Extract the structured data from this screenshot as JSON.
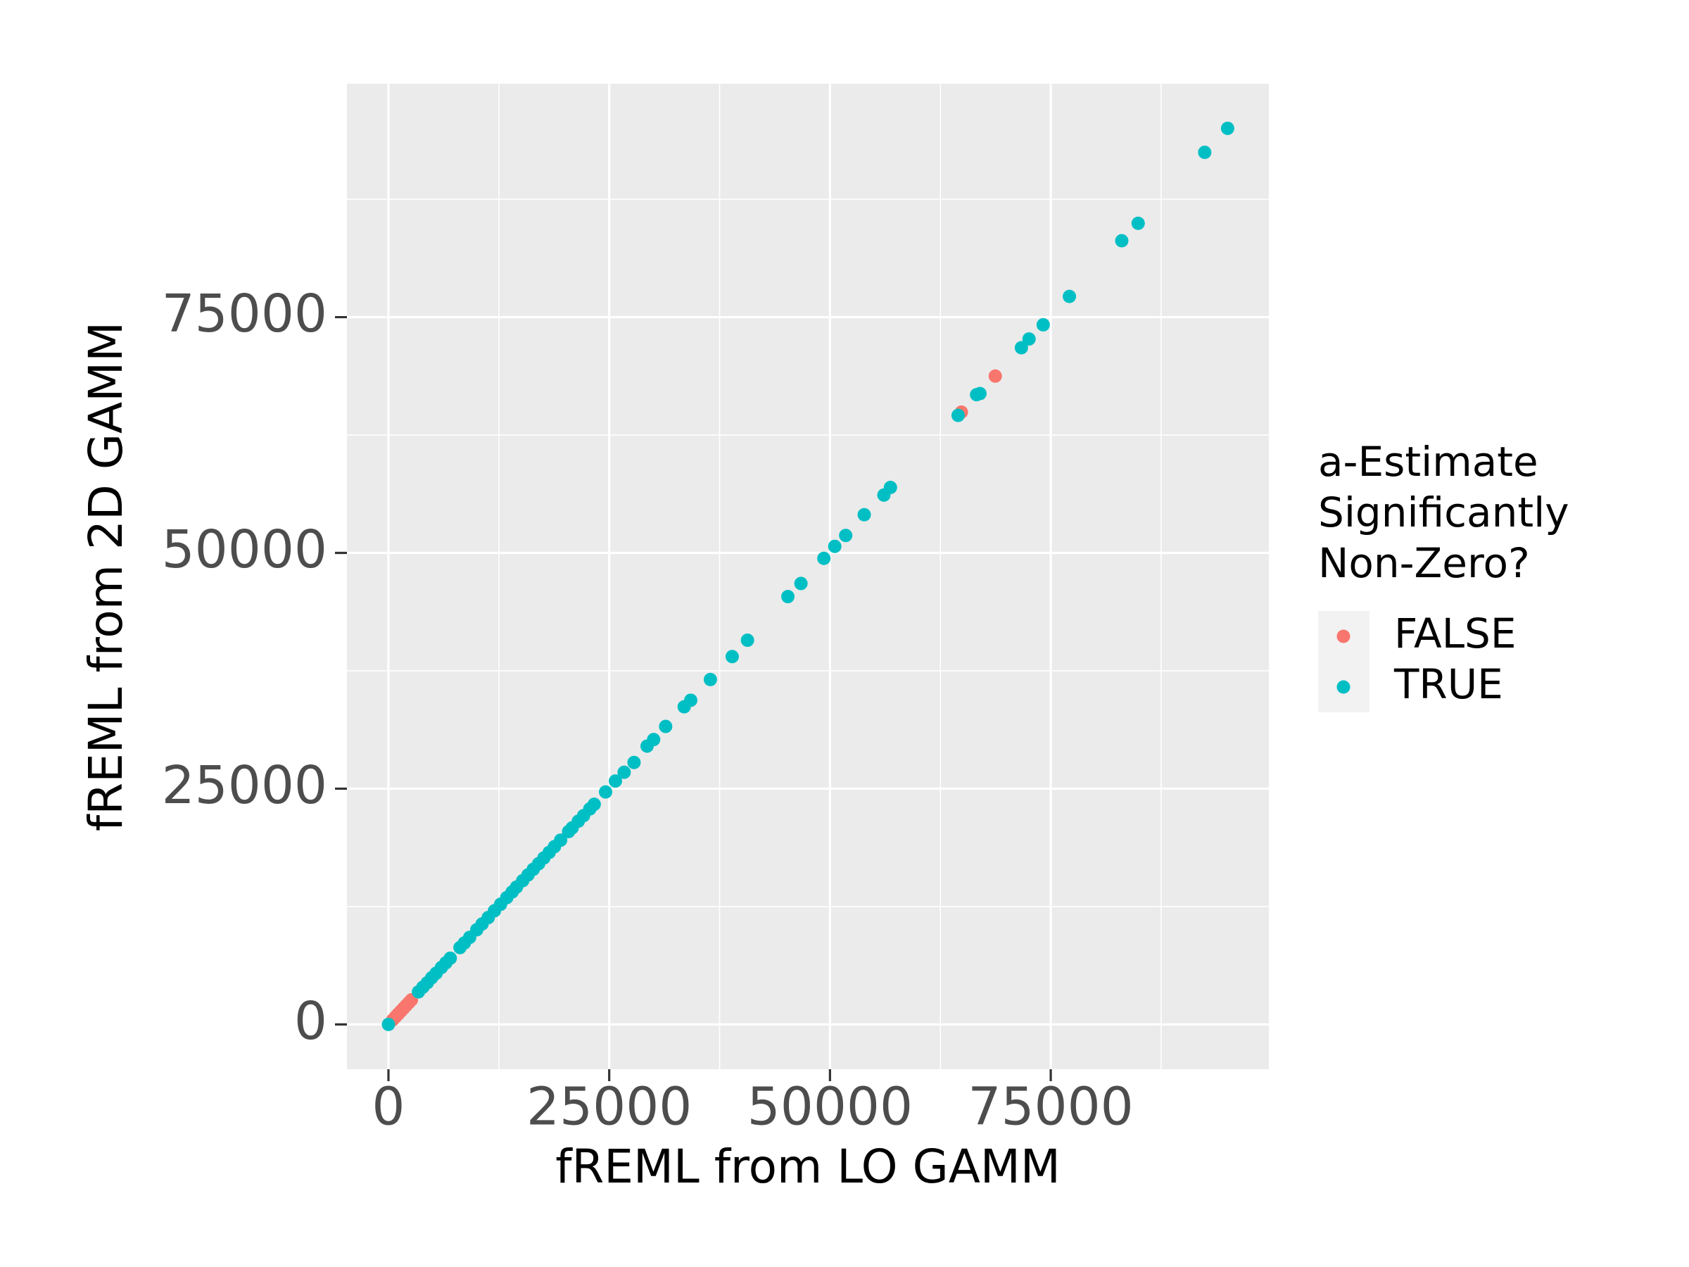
{
  "chart_data": {
    "type": "scatter",
    "x_label": "fREML from LO GAMM",
    "y_label": "fREML from 2D GAMM",
    "legend_title": [
      "a-Estimate",
      "Significantly",
      "Non-Zero?"
    ],
    "legend_position": "right",
    "grid": true,
    "xlim": [
      -4700,
      99700
    ],
    "ylim": [
      -4750,
      99750
    ],
    "xticks": [
      0,
      25000,
      50000,
      75000
    ],
    "yticks": [
      0,
      25000,
      50000,
      75000
    ],
    "series": [
      {
        "name": "FALSE",
        "color": "#F8766D",
        "x": [
          500,
          800,
          1100,
          1400,
          1700,
          2000,
          2300,
          2600,
          64880,
          68720
        ],
        "y": [
          500,
          800,
          1100,
          1400,
          1700,
          2000,
          2300,
          2600,
          64930,
          68750
        ]
      },
      {
        "name": "TRUE",
        "color": "#00BFC4",
        "x": [
          0,
          3400,
          3900,
          4400,
          4900,
          5400,
          6000,
          6500,
          7000,
          8100,
          8600,
          9200,
          10000,
          10600,
          11300,
          12000,
          12700,
          13400,
          14000,
          14500,
          15200,
          15800,
          16400,
          17000,
          17600,
          18200,
          18800,
          19500,
          20400,
          20800,
          21500,
          22100,
          22800,
          23300,
          24590,
          25700,
          26690,
          27810,
          29290,
          30030,
          31390,
          33490,
          34232,
          36456,
          38928,
          40658,
          45230,
          46713,
          49308,
          50544,
          51780,
          53880,
          56105,
          56846,
          64510,
          66600,
          66980,
          71675,
          72540,
          74146,
          77112,
          83043,
          84897,
          92435,
          95030
        ],
        "y": [
          0,
          3450,
          3950,
          4420,
          4950,
          5430,
          6040,
          6530,
          7020,
          8150,
          8640,
          9230,
          10040,
          10650,
          11330,
          12050,
          12740,
          13450,
          14040,
          14560,
          15240,
          15850,
          16450,
          17040,
          17650,
          18240,
          18850,
          19540,
          20450,
          20840,
          21550,
          22140,
          22850,
          23340,
          24652,
          25810,
          26736,
          27778,
          29514,
          30208,
          31597,
          33680,
          34375,
          36574,
          39005,
          40741,
          45370,
          46759,
          49421,
          50694,
          51852,
          54051,
          56134,
          56944,
          64583,
          66780,
          66898,
          71759,
          72685,
          74190,
          77199,
          83102,
          84954,
          92477,
          95023
        ]
      }
    ]
  }
}
